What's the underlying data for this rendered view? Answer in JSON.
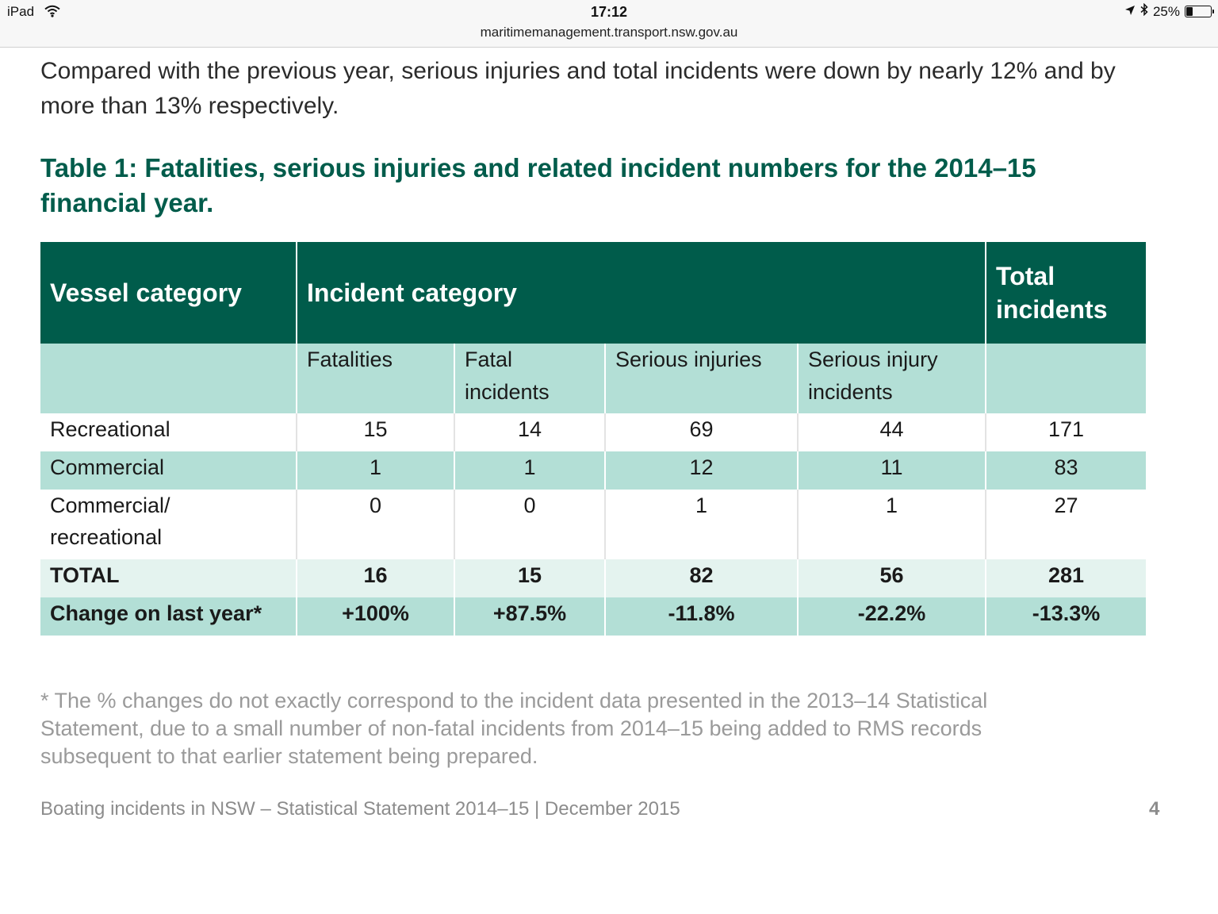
{
  "status_bar": {
    "device": "iPad",
    "time": "17:12",
    "url": "maritimemanagement.transport.nsw.gov.au",
    "battery_text": "25%",
    "battery_level": 0.25,
    "icons": [
      "wifi-icon",
      "location-arrow-icon",
      "bluetooth-icon",
      "battery-icon"
    ]
  },
  "intro_text": "Compared with the previous year, serious injuries and total incidents were down by nearly 12% and by more than 13% respectively.",
  "table_title": "Table 1: Fatalities, serious injuries and related incident numbers for the 2014–15 financial year.",
  "table": {
    "header": {
      "vessel_category": "Vessel category",
      "incident_category": "Incident category",
      "total_incidents": "Total incidents"
    },
    "subheaders": [
      "Fatalities",
      "Fatal incidents",
      "Serious injuries",
      "Serious injury incidents"
    ],
    "rows": [
      {
        "category": "Recreational",
        "values": [
          "15",
          "14",
          "69",
          "44",
          "171"
        ]
      },
      {
        "category": "Commercial",
        "values": [
          "1",
          "1",
          "12",
          "11",
          "83"
        ]
      },
      {
        "category": "Commercial/ recreational",
        "values": [
          "0",
          "0",
          "1",
          "1",
          "27"
        ]
      }
    ],
    "total": {
      "label": "TOTAL",
      "values": [
        "16",
        "15",
        "82",
        "56",
        "281"
      ]
    },
    "change": {
      "label": "Change on last year*",
      "values": [
        "+100%",
        "+87.5%",
        "-11.8%",
        "-22.2%",
        "-13.3%"
      ]
    }
  },
  "footnote": "* The % changes do not exactly correspond to the incident data presented in the 2013–14 Statistical Statement, due to a small number of non-fatal incidents from 2014–15 being added to RMS records subsequent to that earlier statement being prepared.",
  "footer": {
    "text": "Boating incidents in NSW – Statistical Statement 2014–15 | December 2015",
    "page_number": "4"
  },
  "colors": {
    "header_bg": "#005c4b",
    "light_teal": "#b3dfd6",
    "total_bg": "#e4f3ef",
    "title_green": "#005c4b"
  }
}
